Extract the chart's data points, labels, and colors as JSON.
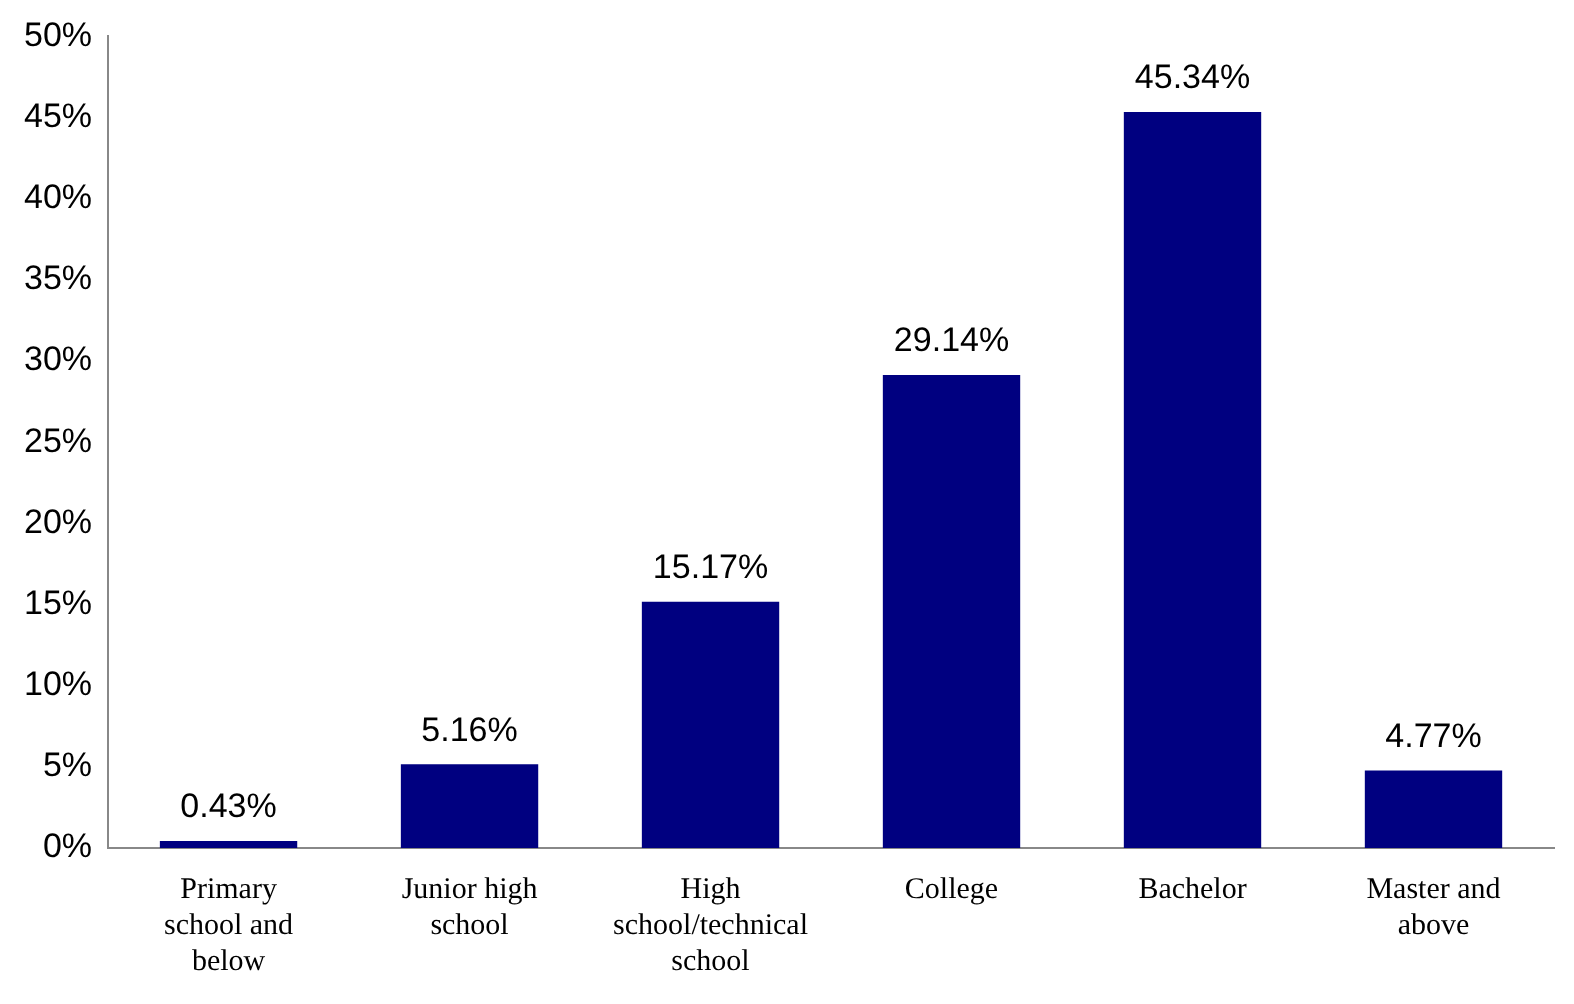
{
  "chart_data": {
    "type": "bar",
    "categories": [
      "Primary school and below",
      "Junior high school",
      "High school/technical school",
      "College",
      "Bachelor",
      "Master and above"
    ],
    "values": [
      0.43,
      5.16,
      15.17,
      29.14,
      45.34,
      4.77
    ],
    "value_labels": [
      "0.43%",
      "5.16%",
      "15.17%",
      "29.14%",
      "45.34%",
      "4.77%"
    ],
    "color": "#000080",
    "ylim": [
      0,
      50
    ],
    "yticks": [
      {
        "value": 0,
        "label": "0%"
      },
      {
        "value": 5,
        "label": "5%"
      },
      {
        "value": 10,
        "label": "10%"
      },
      {
        "value": 15,
        "label": "15%"
      },
      {
        "value": 20,
        "label": "20%"
      },
      {
        "value": 25,
        "label": "25%"
      },
      {
        "value": 30,
        "label": "30%"
      },
      {
        "value": 35,
        "label": "35%"
      },
      {
        "value": 40,
        "label": "40%"
      },
      {
        "value": 45,
        "label": "45%"
      },
      {
        "value": 50,
        "label": "50%"
      }
    ],
    "grid": false,
    "legend": false
  }
}
